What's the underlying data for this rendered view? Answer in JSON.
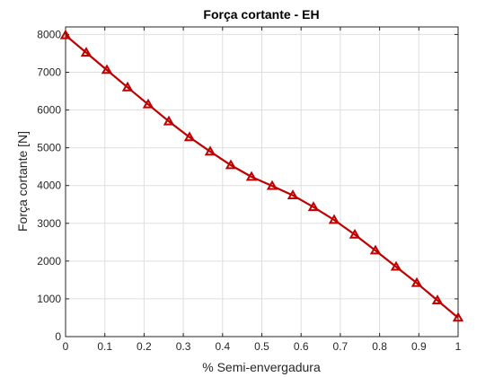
{
  "chart_data": {
    "type": "line",
    "title": "Força cortante - EH",
    "xlabel": "% Semi-envergadura",
    "ylabel": "Força cortante [N]",
    "xlim": [
      0,
      1
    ],
    "ylim": [
      0,
      8200
    ],
    "grid": true,
    "x_ticks": [
      0,
      0.1,
      0.2,
      0.3,
      0.4,
      0.5,
      0.6,
      0.7,
      0.8,
      0.9,
      1
    ],
    "x_tick_labels": [
      "0",
      "0.1",
      "0.2",
      "0.3",
      "0.4",
      "0.5",
      "0.6",
      "0.7",
      "0.8",
      "0.9",
      "1"
    ],
    "y_ticks": [
      0,
      1000,
      2000,
      3000,
      4000,
      5000,
      6000,
      7000,
      8000
    ],
    "y_tick_labels": [
      "0",
      "1000",
      "2000",
      "3000",
      "4000",
      "5000",
      "6000",
      "7000",
      "8000"
    ],
    "series": [
      {
        "color": "#c00000",
        "marker": "triangle",
        "x": [
          0,
          0.0526,
          0.1053,
          0.1579,
          0.2105,
          0.2632,
          0.3158,
          0.3684,
          0.4211,
          0.4737,
          0.5263,
          0.5789,
          0.6316,
          0.6842,
          0.7368,
          0.7895,
          0.8421,
          0.8947,
          0.9474,
          1
        ],
        "y": [
          7980,
          7520,
          7060,
          6600,
          6150,
          5700,
          5280,
          4900,
          4540,
          4230,
          3990,
          3740,
          3430,
          3090,
          2700,
          2280,
          1850,
          1420,
          960,
          500
        ]
      }
    ]
  }
}
